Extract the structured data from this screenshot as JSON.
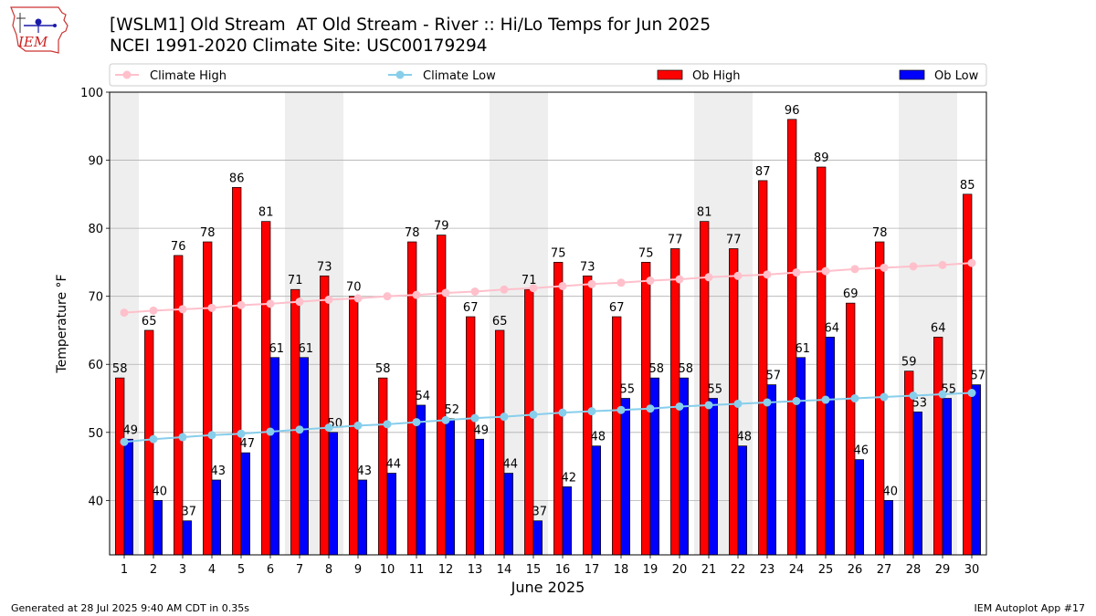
{
  "header": {
    "title_line1": "[WSLM1] Old Stream  AT Old Stream - River :: Hi/Lo Temps for Jun 2025",
    "title_line2": "NCEI 1991-2020 Climate Site: USC00179294",
    "logo_text": "IEM"
  },
  "footer": {
    "generated": "Generated at 28 Jul 2025 9:40 AM CDT in 0.35s",
    "app": "IEM Autoplot App #17"
  },
  "colors": {
    "ob_high": "#ff0000",
    "ob_low": "#0000ff",
    "climate_high": "#ffc0cb",
    "climate_low": "#87ceeb",
    "weekend_band": "#eeeeee",
    "grid": "#b0b0b0"
  },
  "chart_data": {
    "type": "bar",
    "xlabel": "June 2025",
    "ylabel": "Temperature °F",
    "ylim": [
      32,
      100
    ],
    "yticks": [
      40,
      50,
      60,
      70,
      80,
      90,
      100
    ],
    "grid": "horizontal",
    "legend_position": "top",
    "categories": [
      "1",
      "2",
      "3",
      "4",
      "5",
      "6",
      "7",
      "8",
      "9",
      "10",
      "11",
      "12",
      "13",
      "14",
      "15",
      "16",
      "17",
      "18",
      "19",
      "20",
      "21",
      "22",
      "23",
      "24",
      "25",
      "26",
      "27",
      "28",
      "29",
      "30"
    ],
    "shaded_days": [
      1,
      7,
      8,
      14,
      15,
      21,
      22,
      28,
      29
    ],
    "series": [
      {
        "name": "Ob High",
        "kind": "bar",
        "values": [
          58,
          65,
          76,
          78,
          86,
          81,
          71,
          73,
          70,
          58,
          78,
          79,
          67,
          65,
          71,
          75,
          73,
          67,
          75,
          77,
          81,
          77,
          87,
          96,
          89,
          69,
          78,
          59,
          64,
          85
        ]
      },
      {
        "name": "Ob Low",
        "kind": "bar",
        "values": [
          49,
          40,
          37,
          43,
          47,
          61,
          61,
          50,
          43,
          44,
          54,
          52,
          49,
          44,
          37,
          42,
          48,
          55,
          58,
          58,
          55,
          48,
          57,
          61,
          64,
          46,
          40,
          53,
          55,
          57
        ]
      },
      {
        "name": "Climate High",
        "kind": "line",
        "values": [
          67.6,
          67.9,
          68.1,
          68.3,
          68.7,
          68.9,
          69.2,
          69.5,
          69.7,
          70.0,
          70.2,
          70.5,
          70.7,
          71.0,
          71.2,
          71.5,
          71.8,
          72.0,
          72.3,
          72.5,
          72.8,
          73.0,
          73.2,
          73.5,
          73.7,
          74.0,
          74.2,
          74.4,
          74.6,
          74.9
        ]
      },
      {
        "name": "Climate Low",
        "kind": "line",
        "values": [
          48.6,
          49.0,
          49.3,
          49.6,
          49.8,
          50.1,
          50.4,
          50.7,
          51.0,
          51.2,
          51.5,
          51.8,
          52.1,
          52.3,
          52.6,
          52.9,
          53.1,
          53.3,
          53.5,
          53.8,
          54.0,
          54.2,
          54.4,
          54.6,
          54.8,
          55.0,
          55.2,
          55.4,
          55.6,
          55.8
        ]
      }
    ]
  }
}
